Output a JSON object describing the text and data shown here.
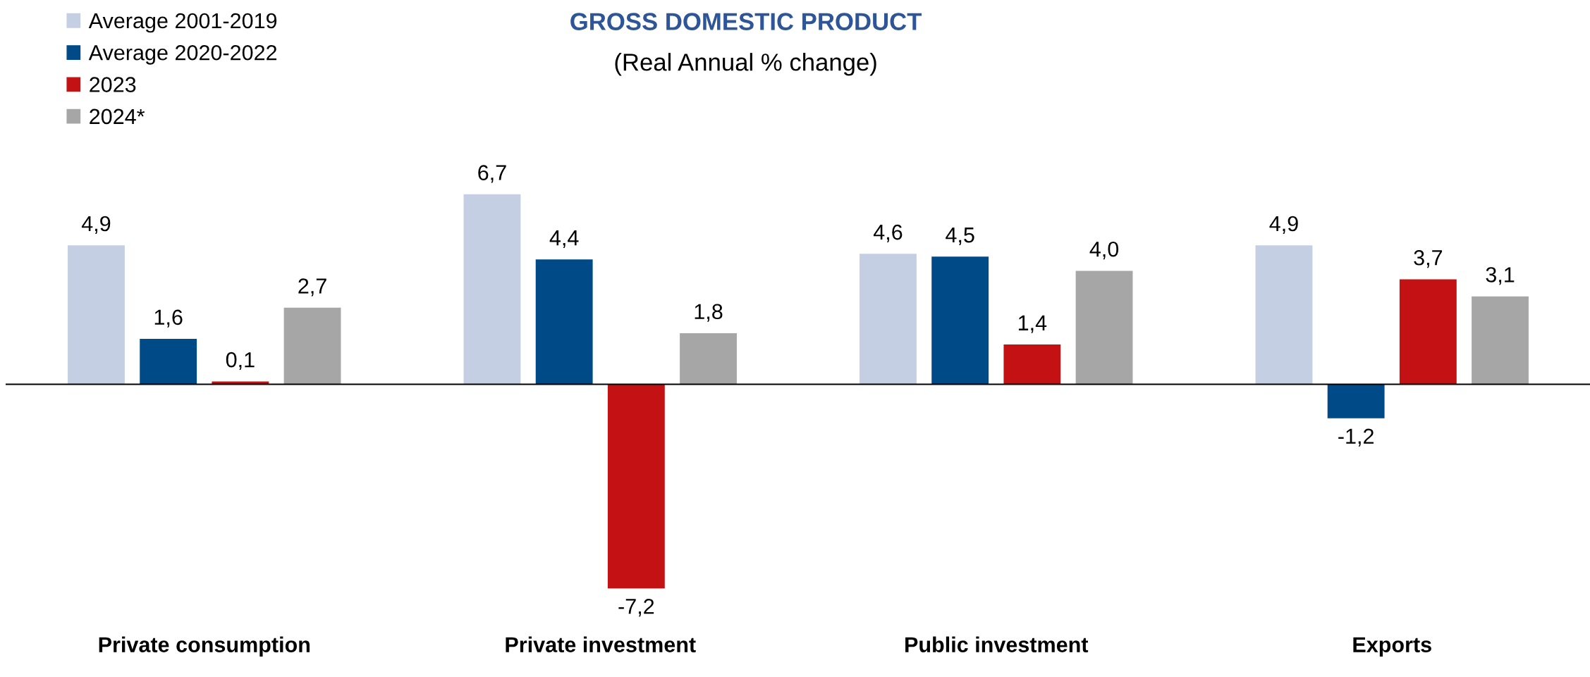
{
  "chart_data": {
    "type": "bar",
    "title": "GROSS DOMESTIC PRODUCT",
    "subtitle": "(Real Annual % change)",
    "categories": [
      "Private consumption",
      "Private investment",
      "Public investment",
      "Exports"
    ],
    "series": [
      {
        "name": "Average 2001-2019",
        "color": "#c5cfe3",
        "values": [
          4.9,
          6.7,
          4.6,
          4.9
        ],
        "value_labels": [
          "4,9",
          "6,7",
          "4,6",
          "4,9"
        ]
      },
      {
        "name": "Average 2020-2022",
        "color": "#004b87",
        "values": [
          1.6,
          4.4,
          4.5,
          -1.2
        ],
        "value_labels": [
          "1,6",
          "4,4",
          "4,5",
          "-1,2"
        ]
      },
      {
        "name": "2023",
        "color": "#c41214",
        "values": [
          0.1,
          -7.2,
          1.4,
          3.7
        ],
        "value_labels": [
          "0,1",
          "-7,2",
          "1,4",
          "3,7"
        ]
      },
      {
        "name": "2024*",
        "color": "#a6a6a6",
        "values": [
          2.7,
          1.8,
          4.0,
          3.1
        ],
        "value_labels": [
          "2,7",
          "1,8",
          "4,0",
          "3,1"
        ]
      }
    ],
    "legend": "top left"
  }
}
